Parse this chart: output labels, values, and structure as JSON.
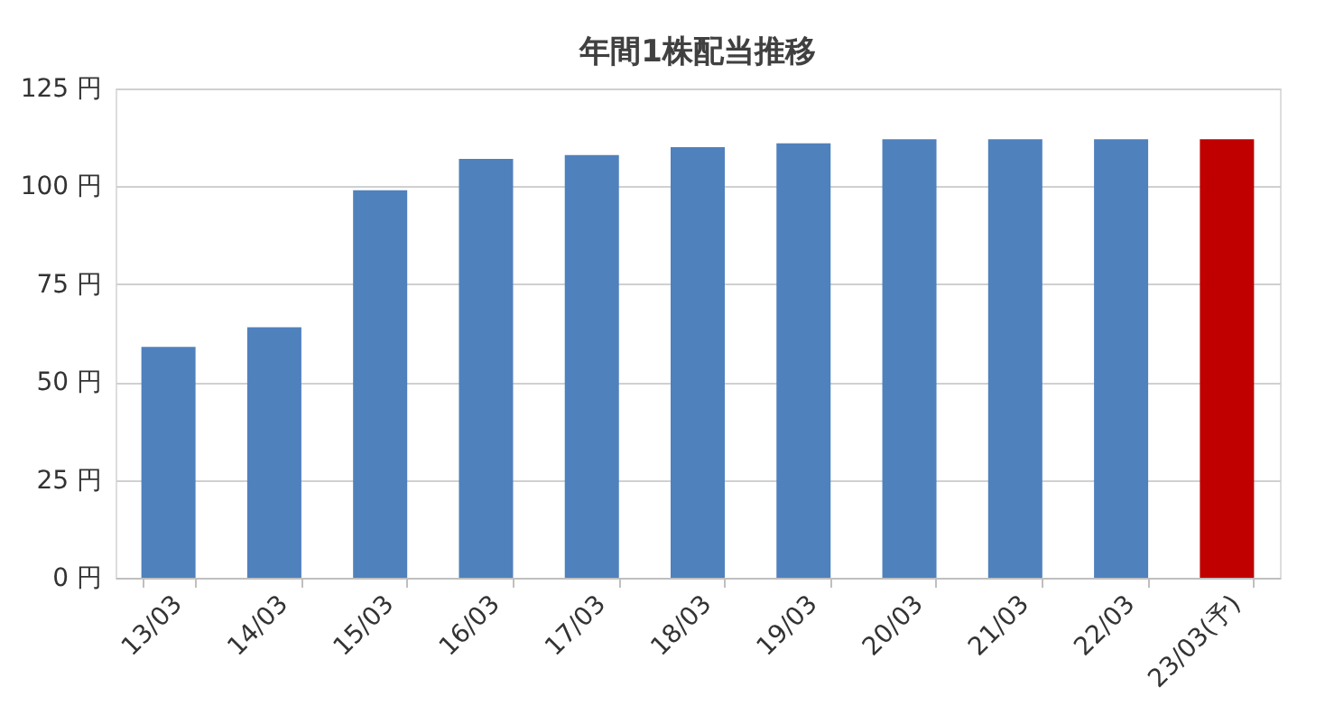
{
  "chart_data": {
    "type": "bar",
    "title": "年間1株配当推移",
    "categories": [
      "13/03",
      "14/03",
      "15/03",
      "16/03",
      "17/03",
      "18/03",
      "19/03",
      "20/03",
      "21/03",
      "22/03",
      "23/03(予)"
    ],
    "values": [
      59,
      64,
      99,
      107,
      108,
      110,
      111,
      112,
      112,
      112,
      112
    ],
    "colors": [
      "#4f81bd",
      "#4f81bd",
      "#4f81bd",
      "#4f81bd",
      "#4f81bd",
      "#4f81bd",
      "#4f81bd",
      "#4f81bd",
      "#4f81bd",
      "#4f81bd",
      "#c00000"
    ],
    "ylim": [
      0,
      125
    ],
    "yticks": [
      {
        "value": 0,
        "label": "0 円"
      },
      {
        "value": 25,
        "label": "25 円"
      },
      {
        "value": 50,
        "label": "50 円"
      },
      {
        "value": 75,
        "label": "75 円"
      },
      {
        "value": 100,
        "label": "100 円"
      },
      {
        "value": 125,
        "label": "125 円"
      }
    ],
    "grid": "y"
  }
}
